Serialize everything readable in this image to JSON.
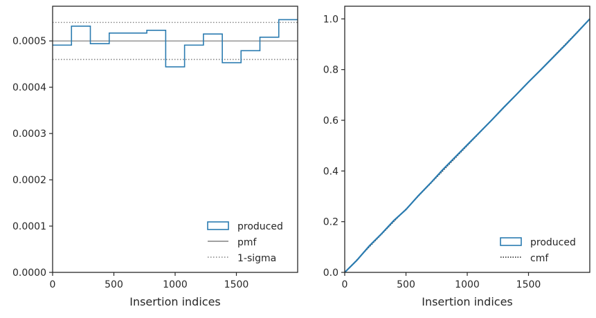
{
  "chart_data": [
    {
      "type": "histogram-step",
      "xlabel": "Insertion indices",
      "xlim": [
        0,
        2000
      ],
      "ylim": [
        0,
        0.000575
      ],
      "xticks": [
        0,
        500,
        1000,
        1500
      ],
      "xtick_labels": [
        "0",
        "500",
        "1000",
        "1500"
      ],
      "yticks": [
        0,
        0.0001,
        0.0002,
        0.0003,
        0.0004,
        0.0005
      ],
      "ytick_labels": [
        "0.0000",
        "0.0001",
        "0.0002",
        "0.0003",
        "0.0004",
        "0.0005"
      ],
      "bin_edges": [
        0,
        154,
        308,
        462,
        615,
        769,
        923,
        1077,
        1231,
        1385,
        1538,
        1692,
        1846,
        2000
      ],
      "produced": [
        0.000491,
        0.000532,
        0.000494,
        0.000517,
        0.000517,
        0.000523,
        0.000444,
        0.000491,
        0.000515,
        0.000453,
        0.000479,
        0.000508,
        0.000546
      ],
      "pmf": 0.0005,
      "sigma_upper": 0.00054,
      "sigma_lower": 0.00046,
      "legend": [
        {
          "label": "produced",
          "style": "patch"
        },
        {
          "label": "pmf",
          "style": "solid"
        },
        {
          "label": "1-sigma",
          "style": "dotted"
        }
      ],
      "legend_position": "lower-right",
      "colors": {
        "produced": "#2a7bb0",
        "pmf": "#808080",
        "sigma": "#808080"
      }
    },
    {
      "type": "line",
      "xlabel": "Insertion indices",
      "xlim": [
        0,
        2000
      ],
      "ylim": [
        0,
        1.05
      ],
      "xticks": [
        0,
        500,
        1000,
        1500
      ],
      "xtick_labels": [
        "0",
        "500",
        "1000",
        "1500"
      ],
      "yticks": [
        0,
        0.2,
        0.4,
        0.6,
        0.8,
        1.0
      ],
      "ytick_labels": [
        "0.0",
        "0.2",
        "0.4",
        "0.6",
        "0.8",
        "1.0"
      ],
      "series": [
        {
          "name": "produced",
          "x": [
            0,
            100,
            200,
            300,
            400,
            500,
            600,
            700,
            800,
            900,
            1000,
            1100,
            1200,
            1300,
            1400,
            1500,
            1600,
            1700,
            1800,
            1900,
            2000
          ],
          "y": [
            0,
            0.048,
            0.104,
            0.152,
            0.204,
            0.248,
            0.302,
            0.352,
            0.405,
            0.454,
            0.503,
            0.552,
            0.601,
            0.652,
            0.701,
            0.751,
            0.799,
            0.848,
            0.897,
            0.948,
            1.0
          ]
        },
        {
          "name": "cmf",
          "x": [
            0,
            2000
          ],
          "y": [
            0,
            1.0
          ]
        }
      ],
      "legend": [
        {
          "label": "produced",
          "style": "patch"
        },
        {
          "label": "cmf",
          "style": "dotted"
        }
      ],
      "legend_position": "lower-right",
      "colors": {
        "produced": "#2a7bb0",
        "cmf": "#1a1a1a"
      }
    }
  ]
}
